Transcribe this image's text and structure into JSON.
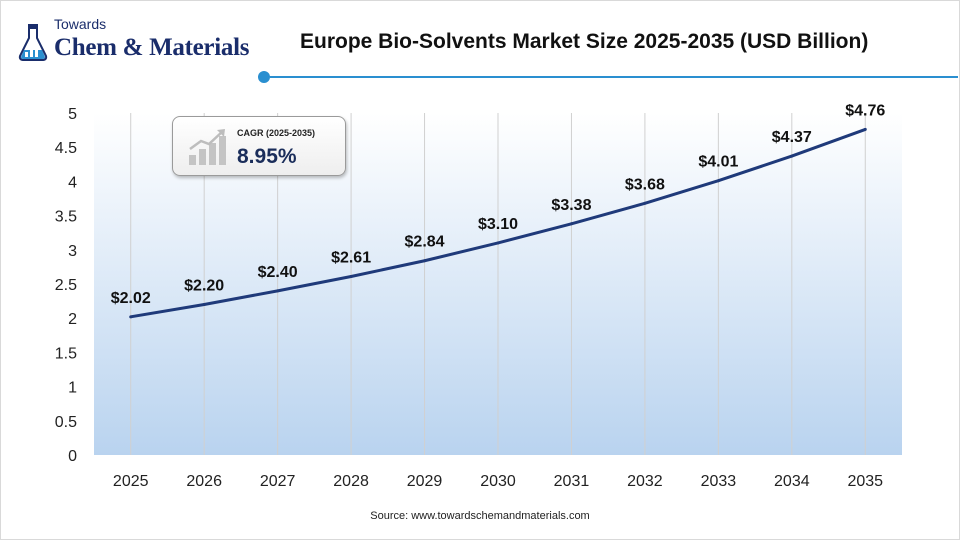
{
  "logo": {
    "top_text": "Towards",
    "main_text": "Chem & Materials",
    "icon": "flask-icon"
  },
  "cagr": {
    "label": "CAGR (2025-2035)",
    "value": "8.95%",
    "icon": "growth-bars-icon"
  },
  "source": "Source: www.towardschemandmaterials.com",
  "colors": {
    "line": "#1f3a7a",
    "accent": "#2a8fd0",
    "area_top": "#ffffff",
    "area_bottom": "#b9d3ef",
    "gridline": "#d0d0d0"
  },
  "chart_data": {
    "type": "line",
    "title": "Europe Bio-Solvents Market Size 2025-2035 (USD Billion)",
    "xlabel": "",
    "ylabel": "",
    "categories": [
      "2025",
      "2026",
      "2027",
      "2028",
      "2029",
      "2030",
      "2031",
      "2032",
      "2033",
      "2034",
      "2035"
    ],
    "values": [
      2.02,
      2.2,
      2.4,
      2.61,
      2.84,
      3.1,
      3.38,
      3.68,
      4.01,
      4.37,
      4.76
    ],
    "data_labels": [
      "$2.02",
      "$2.20",
      "$2.40",
      "$2.61",
      "$2.84",
      "$3.10",
      "$3.38",
      "$3.68",
      "$4.01",
      "$4.37",
      "$4.76"
    ],
    "ylim": [
      0,
      5
    ],
    "yticks": [
      "0",
      "0.5",
      "1",
      "1.5",
      "2",
      "2.5",
      "3",
      "3.5",
      "4",
      "4.5",
      "5"
    ],
    "grid": "vertical",
    "legend": "none"
  }
}
